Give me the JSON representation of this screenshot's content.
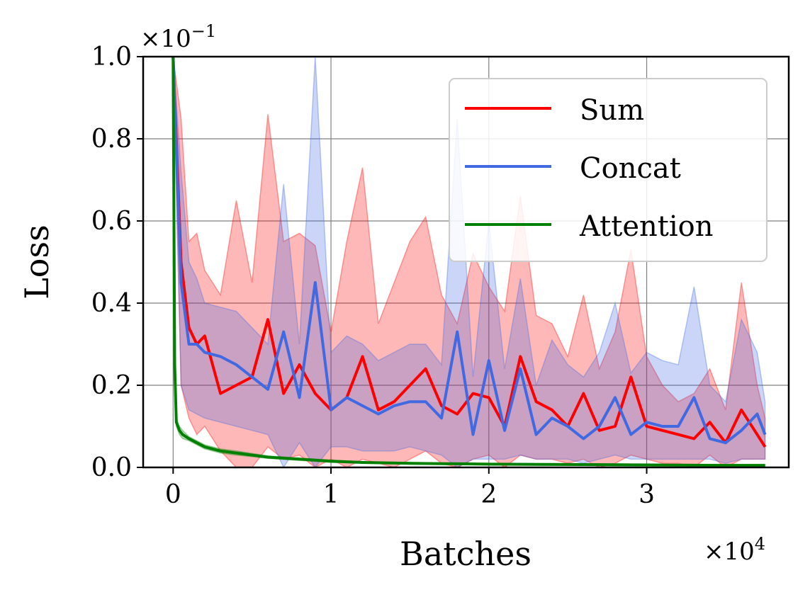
{
  "chart_data": {
    "type": "line",
    "xlabel": "Batches",
    "ylabel": "Loss",
    "xlim": [
      -0.19,
      3.9
    ],
    "ylim": [
      0.0,
      1.0
    ],
    "x_ticks": [
      0,
      1,
      2,
      3
    ],
    "x_tick_labels": [
      "0",
      "1",
      "2",
      "3"
    ],
    "y_ticks": [
      0.0,
      0.2,
      0.4,
      0.6,
      0.8,
      1.0
    ],
    "y_tick_labels": [
      "0.0",
      "0.2",
      "0.4",
      "0.6",
      "0.8",
      "1.0"
    ],
    "x_multiplier": {
      "base": "×10",
      "exp": "4"
    },
    "y_multiplier": {
      "base": "×10",
      "exp": "−1"
    },
    "grid": true,
    "legend_position": "top-right",
    "series": [
      {
        "name": "Sum",
        "color": "#ff0000",
        "x": [
          0.0,
          0.05,
          0.1,
          0.15,
          0.2,
          0.3,
          0.4,
          0.5,
          0.6,
          0.7,
          0.8,
          0.9,
          1.0,
          1.1,
          1.2,
          1.3,
          1.4,
          1.5,
          1.6,
          1.7,
          1.8,
          1.9,
          2.0,
          2.1,
          2.2,
          2.3,
          2.4,
          2.5,
          2.6,
          2.7,
          2.8,
          2.9,
          3.0,
          3.1,
          3.2,
          3.3,
          3.4,
          3.5,
          3.6,
          3.7,
          3.75
        ],
        "mean": [
          1.0,
          0.5,
          0.34,
          0.3,
          0.32,
          0.18,
          0.2,
          0.22,
          0.36,
          0.18,
          0.25,
          0.18,
          0.14,
          0.17,
          0.27,
          0.14,
          0.16,
          0.2,
          0.24,
          0.15,
          0.13,
          0.18,
          0.17,
          0.1,
          0.27,
          0.16,
          0.14,
          0.1,
          0.18,
          0.09,
          0.1,
          0.22,
          0.1,
          0.09,
          0.08,
          0.07,
          0.11,
          0.06,
          0.14,
          0.08,
          0.05
        ],
        "upper": [
          1.0,
          0.85,
          0.55,
          0.57,
          0.48,
          0.42,
          0.65,
          0.45,
          0.86,
          0.55,
          0.57,
          0.54,
          0.33,
          0.55,
          0.73,
          0.35,
          0.45,
          0.55,
          0.61,
          0.42,
          0.35,
          0.52,
          0.44,
          0.38,
          0.66,
          0.37,
          0.35,
          0.27,
          0.42,
          0.24,
          0.33,
          0.53,
          0.27,
          0.2,
          0.16,
          0.18,
          0.24,
          0.14,
          0.45,
          0.2,
          0.12
        ],
        "lower": [
          1.0,
          0.2,
          0.12,
          0.08,
          0.1,
          0.04,
          0.0,
          0.0,
          0.05,
          0.02,
          0.03,
          0.0,
          0.02,
          0.0,
          0.02,
          0.01,
          0.0,
          0.02,
          0.04,
          0.01,
          0.0,
          0.02,
          0.03,
          0.0,
          0.03,
          0.02,
          0.02,
          0.01,
          0.02,
          0.0,
          0.01,
          0.03,
          0.02,
          0.01,
          0.01,
          0.0,
          0.03,
          0.0,
          0.02,
          0.02,
          0.02
        ]
      },
      {
        "name": "Concat",
        "color": "#4169e1",
        "x": [
          0.0,
          0.05,
          0.1,
          0.15,
          0.2,
          0.3,
          0.4,
          0.5,
          0.6,
          0.7,
          0.8,
          0.9,
          1.0,
          1.1,
          1.2,
          1.3,
          1.4,
          1.5,
          1.6,
          1.7,
          1.8,
          1.9,
          2.0,
          2.1,
          2.2,
          2.3,
          2.4,
          2.5,
          2.6,
          2.7,
          2.8,
          2.9,
          3.0,
          3.1,
          3.2,
          3.3,
          3.4,
          3.5,
          3.6,
          3.7,
          3.75
        ],
        "mean": [
          1.0,
          0.45,
          0.3,
          0.3,
          0.28,
          0.27,
          0.25,
          0.22,
          0.19,
          0.33,
          0.17,
          0.45,
          0.14,
          0.17,
          0.15,
          0.13,
          0.15,
          0.16,
          0.16,
          0.12,
          0.33,
          0.08,
          0.26,
          0.09,
          0.24,
          0.08,
          0.12,
          0.1,
          0.07,
          0.1,
          0.17,
          0.08,
          0.11,
          0.1,
          0.1,
          0.17,
          0.07,
          0.06,
          0.09,
          0.13,
          0.08
        ],
        "upper": [
          1.0,
          0.72,
          0.5,
          0.46,
          0.4,
          0.39,
          0.38,
          0.34,
          0.3,
          0.69,
          0.3,
          1.0,
          0.28,
          0.32,
          0.3,
          0.26,
          0.28,
          0.3,
          0.3,
          0.25,
          0.85,
          0.22,
          0.6,
          0.24,
          0.46,
          0.2,
          0.31,
          0.25,
          0.22,
          0.28,
          0.4,
          0.23,
          0.28,
          0.26,
          0.25,
          0.44,
          0.2,
          0.16,
          0.36,
          0.28,
          0.16
        ],
        "lower": [
          1.0,
          0.2,
          0.14,
          0.13,
          0.12,
          0.11,
          0.1,
          0.09,
          0.08,
          0.0,
          0.06,
          0.0,
          0.05,
          0.05,
          0.04,
          0.04,
          0.04,
          0.05,
          0.04,
          0.03,
          0.0,
          0.02,
          0.02,
          0.02,
          0.03,
          0.02,
          0.02,
          0.02,
          0.01,
          0.02,
          0.03,
          0.02,
          0.02,
          0.02,
          0.02,
          0.02,
          0.02,
          0.01,
          0.02,
          0.02,
          0.02
        ]
      },
      {
        "name": "Attention",
        "color": "#008000",
        "x": [
          0.0,
          0.01,
          0.02,
          0.04,
          0.06,
          0.1,
          0.15,
          0.2,
          0.3,
          0.4,
          0.5,
          0.6,
          0.8,
          1.0,
          1.2,
          1.5,
          2.0,
          2.5,
          3.0,
          3.5,
          3.75
        ],
        "mean": [
          1.0,
          0.25,
          0.11,
          0.09,
          0.08,
          0.07,
          0.06,
          0.05,
          0.04,
          0.035,
          0.03,
          0.025,
          0.02,
          0.015,
          0.012,
          0.01,
          0.008,
          0.007,
          0.006,
          0.005,
          0.005
        ],
        "upper": [
          1.0,
          0.27,
          0.12,
          0.1,
          0.09,
          0.075,
          0.065,
          0.055,
          0.045,
          0.04,
          0.034,
          0.028,
          0.023,
          0.018,
          0.014,
          0.012,
          0.01,
          0.009,
          0.008,
          0.007,
          0.007
        ],
        "lower": [
          1.0,
          0.23,
          0.1,
          0.08,
          0.07,
          0.065,
          0.055,
          0.045,
          0.035,
          0.03,
          0.026,
          0.022,
          0.017,
          0.012,
          0.01,
          0.008,
          0.006,
          0.005,
          0.004,
          0.003,
          0.003
        ]
      }
    ]
  }
}
